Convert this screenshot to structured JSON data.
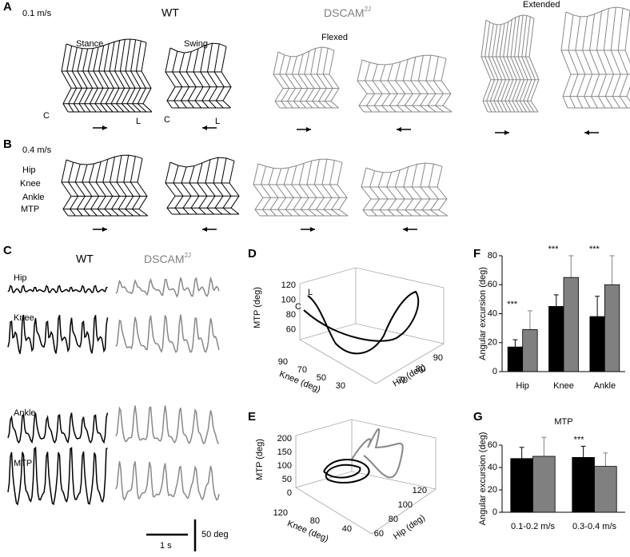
{
  "panels": {
    "A": {
      "letter": "A",
      "speed": "0.1 m/s",
      "wt": "WT",
      "mutant": "DSCAM",
      "mutant_sup": "2J",
      "extended": "Extended",
      "stance": "Stance",
      "swing": "Swing",
      "flexed": "Flexed",
      "c1": "C",
      "l1": "L",
      "c2": "C",
      "l2": "L"
    },
    "B": {
      "letter": "B",
      "speed": "0.4 m/s",
      "joints": [
        "Hip",
        "Knee",
        "Ankle",
        "MTP"
      ]
    },
    "C": {
      "letter": "C",
      "wt": "WT",
      "mutant": "DSCAM",
      "mutant_sup": "2J",
      "joints": [
        "Hip",
        "Knee",
        "Ankle",
        "MTP"
      ],
      "time_scale": "1 s",
      "amp_scale": "50 deg"
    },
    "D": {
      "letter": "D",
      "z_label": "MTP (deg)",
      "z_ticks": [
        120,
        100,
        80,
        60
      ],
      "x_label": "Knee (deg)",
      "x_ticks": [
        90,
        70,
        50,
        30
      ],
      "y_label": "Hip (deg)",
      "y_ticks": [
        70,
        80,
        90
      ],
      "start": "L",
      "end": "C"
    },
    "E": {
      "letter": "E",
      "z_label": "MTP (deg)",
      "z_ticks": [
        200,
        150,
        100,
        50,
        0
      ],
      "x_label": "Knee (deg)",
      "x_ticks": [
        120,
        80,
        40
      ],
      "y_label": "Hip (deg)",
      "y_ticks": [
        60,
        80,
        100,
        120
      ]
    }
  },
  "chart_data": [
    {
      "type": "bar",
      "letter": "F",
      "ylabel": "Angular excursion (deg)",
      "categories": [
        "Hip",
        "Knee",
        "Ankle"
      ],
      "series": [
        {
          "color": "#000000",
          "values": [
            17,
            45,
            38
          ],
          "errors": [
            5,
            8,
            14
          ]
        },
        {
          "color": "#808080",
          "values": [
            29,
            65,
            60
          ],
          "errors": [
            13,
            15,
            20
          ]
        }
      ],
      "annotations": [
        "***",
        "***",
        "***"
      ],
      "ylim": [
        0,
        80
      ],
      "yticks": [
        0,
        20,
        40,
        60,
        80
      ]
    },
    {
      "type": "bar",
      "letter": "G",
      "title": "MTP",
      "ylabel": "Angular excursion (deg)",
      "categories": [
        "0.1-0.2 m/s",
        "0.3-0.4 m/s"
      ],
      "series": [
        {
          "color": "#000000",
          "values": [
            48,
            49
          ],
          "errors": [
            10,
            10
          ]
        },
        {
          "color": "#808080",
          "values": [
            50,
            41
          ],
          "errors": [
            17,
            12
          ]
        }
      ],
      "annotations": [
        null,
        "***"
      ],
      "ylim": [
        0,
        60
      ],
      "yticks": [
        0,
        20,
        40,
        60
      ]
    }
  ]
}
